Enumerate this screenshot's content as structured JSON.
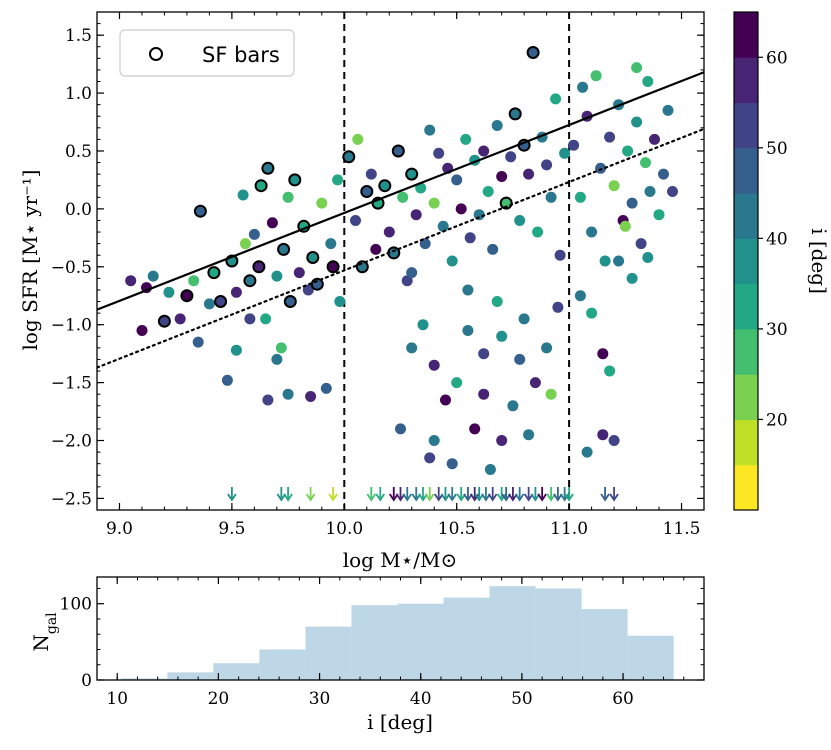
{
  "chart_data": [
    {
      "type": "scatter",
      "xlabel": "log M⋆/M⊙",
      "ylabel": "log SFR [M⋆ yr⁻¹]",
      "xlim": [
        8.9,
        11.6
      ],
      "ylim": [
        -2.6,
        1.7
      ],
      "xticks": [
        9.0,
        9.5,
        10.0,
        10.5,
        11.0,
        11.5
      ],
      "xtick_labels": [
        "9.0",
        "9.5",
        "10.0",
        "10.5",
        "11.0",
        "11.5"
      ],
      "yticks": [
        -2.5,
        -2.0,
        -1.5,
        -1.0,
        -0.5,
        0.0,
        0.5,
        1.0,
        1.5
      ],
      "ytick_labels": [
        "−2.5",
        "−2.0",
        "−1.5",
        "−1.0",
        "−0.5",
        "0.0",
        "0.5",
        "1.0",
        "1.5"
      ],
      "legend": {
        "label": "SF bars",
        "placement": "top-left"
      },
      "colorbar": {
        "label": "i [deg]",
        "range": [
          10,
          65
        ],
        "ticks": [
          20,
          30,
          40,
          50,
          60
        ],
        "tick_labels": [
          "20",
          "30",
          "40",
          "50",
          "60"
        ],
        "bins": 11,
        "colormap": "viridis_r"
      },
      "vertical_lines": [
        {
          "x": 10.0,
          "style": "dashed"
        },
        {
          "x": 11.0,
          "style": "dashed"
        }
      ],
      "fit_lines": [
        {
          "style": "solid",
          "x": [
            8.9,
            11.6
          ],
          "y": [
            -0.87,
            1.18
          ]
        },
        {
          "style": "dotted",
          "x": [
            8.9,
            11.6
          ],
          "y": [
            -1.37,
            0.69
          ]
        }
      ],
      "points": [
        [
          9.05,
          -0.62,
          55,
          0
        ],
        [
          9.12,
          -0.68,
          60,
          0
        ],
        [
          9.15,
          -0.58,
          42,
          0
        ],
        [
          9.2,
          -0.97,
          52,
          1
        ],
        [
          9.22,
          -0.72,
          35,
          0
        ],
        [
          9.27,
          -0.95,
          58,
          0
        ],
        [
          9.3,
          -0.75,
          62,
          1
        ],
        [
          9.33,
          -0.62,
          25,
          0
        ],
        [
          9.36,
          -0.02,
          48,
          1
        ],
        [
          9.4,
          -0.82,
          40,
          0
        ],
        [
          9.42,
          -0.55,
          30,
          1
        ],
        [
          9.45,
          -0.8,
          50,
          1
        ],
        [
          9.48,
          -1.48,
          45,
          0
        ],
        [
          9.5,
          -0.45,
          38,
          1
        ],
        [
          9.52,
          -0.72,
          55,
          0
        ],
        [
          9.55,
          0.12,
          35,
          0
        ],
        [
          9.56,
          -0.3,
          22,
          0
        ],
        [
          9.58,
          -0.62,
          42,
          1
        ],
        [
          9.6,
          -0.22,
          48,
          0
        ],
        [
          9.62,
          -0.5,
          58,
          1
        ],
        [
          9.63,
          0.2,
          30,
          1
        ],
        [
          9.65,
          -0.95,
          32,
          0
        ],
        [
          9.66,
          0.35,
          44,
          1
        ],
        [
          9.68,
          -0.12,
          60,
          0
        ],
        [
          9.7,
          -0.58,
          35,
          0
        ],
        [
          9.72,
          -1.2,
          28,
          0
        ],
        [
          9.73,
          -0.35,
          40,
          1
        ],
        [
          9.75,
          0.1,
          25,
          0
        ],
        [
          9.76,
          -0.8,
          46,
          1
        ],
        [
          9.78,
          0.25,
          38,
          1
        ],
        [
          9.8,
          -0.55,
          55,
          0
        ],
        [
          9.82,
          -0.15,
          30,
          1
        ],
        [
          9.84,
          -0.7,
          52,
          0
        ],
        [
          9.86,
          -0.42,
          35,
          1
        ],
        [
          9.88,
          -0.65,
          48,
          1
        ],
        [
          9.9,
          0.05,
          22,
          0
        ],
        [
          9.92,
          -1.55,
          45,
          0
        ],
        [
          9.94,
          -0.3,
          42,
          0
        ],
        [
          9.95,
          -0.5,
          60,
          1
        ],
        [
          9.97,
          0.25,
          32,
          0
        ],
        [
          9.98,
          -0.8,
          35,
          0
        ],
        [
          9.1,
          -1.05,
          62,
          0
        ],
        [
          9.35,
          -1.15,
          46,
          0
        ],
        [
          9.52,
          -1.22,
          36,
          0
        ],
        [
          9.58,
          -0.95,
          50,
          0
        ],
        [
          9.66,
          -1.65,
          50,
          0
        ],
        [
          9.75,
          -1.6,
          40,
          0
        ],
        [
          9.85,
          -1.62,
          55,
          0
        ],
        [
          9.7,
          -1.3,
          40,
          0
        ],
        [
          10.02,
          0.45,
          40,
          1
        ],
        [
          10.05,
          -0.1,
          50,
          0
        ],
        [
          10.06,
          0.6,
          20,
          0
        ],
        [
          10.08,
          -0.5,
          44,
          1
        ],
        [
          10.1,
          0.15,
          48,
          1
        ],
        [
          10.12,
          0.3,
          52,
          0
        ],
        [
          10.14,
          -0.35,
          60,
          0
        ],
        [
          10.15,
          0.05,
          30,
          1
        ],
        [
          10.18,
          0.2,
          36,
          1
        ],
        [
          10.2,
          -0.2,
          58,
          0
        ],
        [
          10.22,
          -0.38,
          42,
          1
        ],
        [
          10.24,
          0.5,
          46,
          1
        ],
        [
          10.26,
          0.1,
          25,
          0
        ],
        [
          10.28,
          -0.62,
          50,
          0
        ],
        [
          10.3,
          0.3,
          38,
          1
        ],
        [
          10.32,
          -0.05,
          55,
          0
        ],
        [
          10.34,
          0.18,
          32,
          0
        ],
        [
          10.36,
          -0.3,
          48,
          0
        ],
        [
          10.38,
          0.68,
          42,
          0
        ],
        [
          10.4,
          0.05,
          22,
          0
        ],
        [
          10.42,
          0.48,
          52,
          0
        ],
        [
          10.44,
          -0.15,
          40,
          0
        ],
        [
          10.46,
          0.35,
          58,
          0
        ],
        [
          10.48,
          -0.45,
          35,
          0
        ],
        [
          10.5,
          0.25,
          45,
          0
        ],
        [
          10.52,
          0.0,
          62,
          0
        ],
        [
          10.54,
          0.6,
          30,
          0
        ],
        [
          10.56,
          -0.25,
          50,
          0
        ],
        [
          10.58,
          0.42,
          38,
          0
        ],
        [
          10.6,
          -0.05,
          44,
          0
        ],
        [
          10.62,
          0.5,
          56,
          0
        ],
        [
          10.64,
          0.15,
          34,
          0
        ],
        [
          10.66,
          -0.35,
          48,
          0
        ],
        [
          10.68,
          0.72,
          42,
          0
        ],
        [
          10.7,
          0.28,
          60,
          0
        ],
        [
          10.72,
          0.05,
          28,
          1
        ],
        [
          10.74,
          0.45,
          52,
          0
        ],
        [
          10.76,
          0.82,
          40,
          1
        ],
        [
          10.78,
          -0.1,
          36,
          0
        ],
        [
          10.8,
          0.55,
          46,
          1
        ],
        [
          10.82,
          0.3,
          58,
          0
        ],
        [
          10.84,
          1.35,
          48,
          1
        ],
        [
          10.86,
          -0.2,
          32,
          0
        ],
        [
          10.88,
          0.62,
          44,
          0
        ],
        [
          10.9,
          0.38,
          54,
          0
        ],
        [
          10.92,
          0.1,
          40,
          0
        ],
        [
          10.94,
          0.95,
          30,
          0
        ],
        [
          10.96,
          -0.4,
          50,
          0
        ],
        [
          10.98,
          0.48,
          38,
          0
        ],
        [
          10.3,
          -1.2,
          40,
          0
        ],
        [
          10.4,
          -1.35,
          55,
          0
        ],
        [
          10.45,
          -1.65,
          60,
          0
        ],
        [
          10.35,
          -1.0,
          38,
          0
        ],
        [
          10.5,
          -1.5,
          30,
          0
        ],
        [
          10.55,
          -1.05,
          44,
          0
        ],
        [
          10.62,
          -1.25,
          50,
          0
        ],
        [
          10.7,
          -1.1,
          35,
          0
        ],
        [
          10.78,
          -1.3,
          45,
          0
        ],
        [
          10.85,
          -1.5,
          55,
          0
        ],
        [
          10.9,
          -1.2,
          42,
          0
        ],
        [
          10.92,
          -1.6,
          22,
          0
        ],
        [
          10.8,
          -0.95,
          40,
          0
        ],
        [
          10.25,
          -1.9,
          48,
          0
        ],
        [
          10.4,
          -2.0,
          42,
          0
        ],
        [
          10.48,
          -2.2,
          45,
          0
        ],
        [
          10.58,
          -1.9,
          60,
          0
        ],
        [
          10.65,
          -2.25,
          40,
          0
        ],
        [
          10.7,
          -2.0,
          55,
          0
        ],
        [
          10.82,
          -1.95,
          44,
          0
        ],
        [
          10.38,
          -2.15,
          52,
          0
        ],
        [
          10.62,
          -1.6,
          58,
          0
        ],
        [
          10.75,
          -1.7,
          42,
          0
        ],
        [
          10.68,
          -0.8,
          30,
          0
        ],
        [
          10.55,
          -0.7,
          40,
          0
        ],
        [
          10.95,
          -0.85,
          52,
          0
        ],
        [
          10.3,
          -0.55,
          48,
          0
        ],
        [
          11.02,
          0.55,
          50,
          0
        ],
        [
          11.05,
          0.1,
          30,
          0
        ],
        [
          11.06,
          1.05,
          44,
          0
        ],
        [
          11.08,
          0.8,
          58,
          0
        ],
        [
          11.1,
          -0.2,
          40,
          0
        ],
        [
          11.12,
          1.15,
          26,
          0
        ],
        [
          11.14,
          0.35,
          48,
          0
        ],
        [
          11.16,
          -0.45,
          36,
          0
        ],
        [
          11.18,
          0.62,
          52,
          0
        ],
        [
          11.2,
          0.2,
          22,
          0
        ],
        [
          11.22,
          0.9,
          42,
          0
        ],
        [
          11.24,
          -0.1,
          60,
          0
        ],
        [
          11.26,
          0.5,
          32,
          0
        ],
        [
          11.28,
          0.05,
          46,
          0
        ],
        [
          11.3,
          0.75,
          38,
          0
        ],
        [
          11.32,
          -0.3,
          50,
          0
        ],
        [
          11.34,
          0.4,
          28,
          0
        ],
        [
          11.36,
          0.15,
          44,
          0
        ],
        [
          11.38,
          0.6,
          56,
          0
        ],
        [
          11.4,
          -0.05,
          34,
          0
        ],
        [
          11.42,
          0.3,
          48,
          0
        ],
        [
          11.44,
          0.85,
          40,
          0
        ],
        [
          11.46,
          0.15,
          54,
          0
        ],
        [
          11.05,
          -0.75,
          40,
          0
        ],
        [
          11.1,
          -0.9,
          30,
          0
        ],
        [
          11.15,
          -1.25,
          60,
          0
        ],
        [
          11.18,
          -1.4,
          30,
          0
        ],
        [
          11.22,
          -0.45,
          44,
          0
        ],
        [
          11.28,
          -0.6,
          38,
          0
        ],
        [
          11.35,
          -0.42,
          35,
          0
        ],
        [
          11.08,
          -2.1,
          40,
          0
        ],
        [
          11.2,
          -2.0,
          52,
          0
        ],
        [
          11.15,
          -1.95,
          58,
          0
        ],
        [
          11.25,
          -0.15,
          22,
          0
        ],
        [
          11.3,
          1.22,
          28,
          0
        ],
        [
          11.35,
          1.1,
          32,
          0
        ]
      ],
      "upper_limits": [
        [
          9.5,
          38
        ],
        [
          9.72,
          36
        ],
        [
          9.75,
          34
        ],
        [
          9.85,
          24
        ],
        [
          9.95,
          18
        ],
        [
          10.12,
          26
        ],
        [
          10.16,
          34
        ],
        [
          10.22,
          60
        ],
        [
          10.25,
          55
        ],
        [
          10.28,
          44
        ],
        [
          10.32,
          40
        ],
        [
          10.35,
          30
        ],
        [
          10.38,
          22
        ],
        [
          10.42,
          50
        ],
        [
          10.45,
          36
        ],
        [
          10.48,
          42
        ],
        [
          10.52,
          30
        ],
        [
          10.55,
          46
        ],
        [
          10.58,
          55
        ],
        [
          10.6,
          38
        ],
        [
          10.63,
          44
        ],
        [
          10.66,
          52
        ],
        [
          10.7,
          34
        ],
        [
          10.72,
          48
        ],
        [
          10.75,
          58
        ],
        [
          10.78,
          40
        ],
        [
          10.82,
          54
        ],
        [
          10.85,
          36
        ],
        [
          10.88,
          60
        ],
        [
          10.92,
          28
        ],
        [
          10.95,
          48
        ],
        [
          10.98,
          44
        ],
        [
          11.0,
          32
        ],
        [
          11.16,
          46
        ],
        [
          11.2,
          50
        ]
      ]
    },
    {
      "type": "bar",
      "xlabel": "i [deg]",
      "ylabel": "N_gal",
      "xlim": [
        8,
        68
      ],
      "ylim": [
        0,
        135
      ],
      "xticks": [
        10,
        20,
        30,
        40,
        50,
        60
      ],
      "xtick_labels": [
        "10",
        "20",
        "30",
        "40",
        "50",
        "60"
      ],
      "yticks": [
        0,
        100
      ],
      "ytick_labels": [
        "0",
        "100"
      ],
      "bin_edges": [
        10.4,
        14.95,
        19.5,
        24.05,
        28.6,
        33.15,
        37.7,
        42.25,
        46.8,
        51.35,
        55.9,
        60.45,
        65.0
      ],
      "values": [
        2,
        10,
        22,
        40,
        70,
        98,
        100,
        108,
        123,
        120,
        93,
        58
      ],
      "ylabel_main": "N",
      "ylabel_sub": "gal"
    }
  ],
  "colors": {
    "viridis_r_bins": [
      "#fde725",
      "#bddf26",
      "#7ad151",
      "#44bf70",
      "#22a884",
      "#21918c",
      "#2a788e",
      "#355f8d",
      "#414487",
      "#482475",
      "#440154"
    ],
    "hist_fill": "#bdd7e7",
    "line": "#000000"
  }
}
